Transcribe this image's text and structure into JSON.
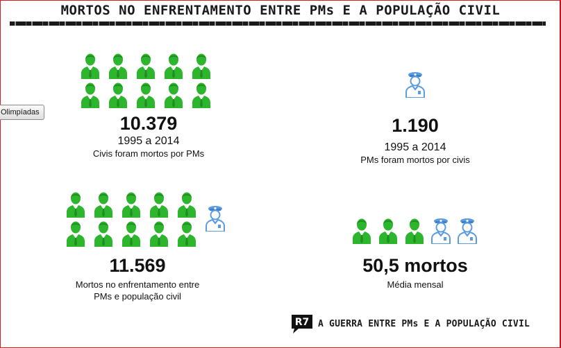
{
  "header": {
    "title": "MORTOS NO ENFRENTAMENTO ENTRE PMs E A POPULAÇÃO CIVIL"
  },
  "olympics_button": {
    "label": "Olimpíadas"
  },
  "colors": {
    "civil": "#2db52d",
    "pm": "#5b9be0",
    "accent": "#d02020"
  },
  "icons": {
    "civil": "civilian-person-icon",
    "pm": "police-officer-icon"
  },
  "stats": [
    {
      "number": "10.379",
      "period": "1995 a 2014",
      "description": "Civis foram mortos por PMs"
    },
    {
      "number": "1.190",
      "period": "1995 a 2014",
      "description": "PMs foram mortos por civis"
    },
    {
      "number": "11.569",
      "description_line1": "Mortos no enfrentamento entre",
      "description_line2": "PMs e população civil"
    },
    {
      "number": "50,5 mortos",
      "description": "Média mensal"
    }
  ],
  "footer": {
    "logo_text": "R7",
    "text": "A GUERRA ENTRE PMs E A POPULAÇÃO CIVIL"
  }
}
